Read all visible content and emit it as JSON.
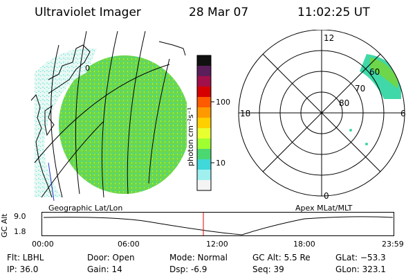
{
  "header": {
    "title": "Ultraviolet Imager",
    "date": "28 Mar 07",
    "time": "11:02:25 UT"
  },
  "left_panel": {
    "caption": "Geographic Lat/Lon",
    "marks": [
      "0"
    ]
  },
  "colorbar": {
    "unit_label": "photon cm⁻²s⁻¹",
    "ticks": [
      "100",
      "10"
    ],
    "colors": [
      "#111",
      "#5a1f5a",
      "#a1104a",
      "#d50000",
      "#ff5a00",
      "#ff9900",
      "#ffd000",
      "#e8ff30",
      "#a0ff30",
      "#4cd870",
      "#40d8d8",
      "#a0f0f0",
      "#f4f4f4"
    ]
  },
  "right_panel": {
    "caption": "Apex MLat/MLT",
    "mlt_labels": [
      "12",
      "18",
      "6",
      "0"
    ],
    "mlat_labels": [
      "60",
      "70",
      "80"
    ]
  },
  "timeline": {
    "ylabel": "GC Alt",
    "yticks": [
      "9.0",
      "1.8"
    ],
    "xticks": [
      "00:00",
      "06:00",
      "12:00",
      "18:00",
      "23:59"
    ],
    "cursor_color": "#e00000"
  },
  "info": {
    "flt": "Flt: LBHL",
    "ip": "IP: 36.0",
    "door": "Door: Open",
    "gain": "Gain: 14",
    "mode": "Mode: Normal",
    "dsp": "Dsp:    -6.9",
    "gcalt": "GC Alt: 5.5 Re",
    "seq": "Seq: 39",
    "glat": "GLat: −53.3",
    "glon": "GLon: 323.1"
  }
}
